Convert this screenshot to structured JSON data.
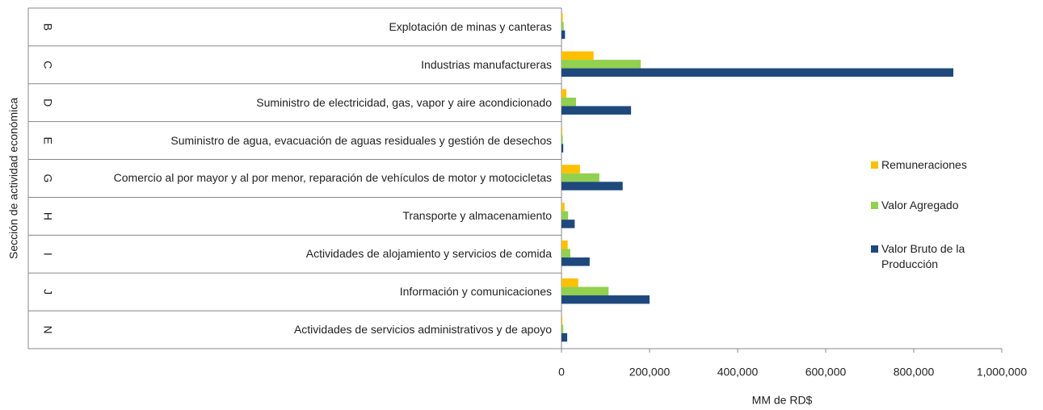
{
  "chart_data": {
    "type": "bar",
    "orientation": "horizontal",
    "axis_title_y": "Sección de actividad económica",
    "axis_title_x": "MM de RD$",
    "sections": [
      "B",
      "C",
      "D",
      "E",
      "G",
      "H",
      "I",
      "J",
      "N"
    ],
    "categories": [
      "Explotación de minas y canteras",
      "Industrias manufactureras",
      "Suministro de electricidad, gas, vapor y aire acondicionado",
      "Suministro de agua, evacuación de aguas residuales y gestión de desechos",
      "Comercio al por mayor y al por menor, reparación de vehículos de motor y motocicletas",
      "Transporte y almacenamiento",
      "Actividades de alojamiento y servicios de comida",
      "Información y comunicaciones",
      "Actividades de servicios administrativos y de apoyo"
    ],
    "series": [
      {
        "name": "Remuneraciones",
        "color": "#FFC000",
        "values": [
          3000,
          73000,
          11000,
          2000,
          42000,
          7000,
          14000,
          38000,
          2000
        ]
      },
      {
        "name": "Valor Agregado",
        "color": "#92D050",
        "values": [
          5000,
          180000,
          33000,
          3000,
          86000,
          15000,
          20000,
          107000,
          4000
        ]
      },
      {
        "name": "Valor Bruto de la Producción",
        "color": "#1F497D",
        "values": [
          8000,
          890000,
          158000,
          4000,
          139000,
          30000,
          64000,
          200000,
          13000
        ]
      }
    ],
    "xlim": [
      0,
      1000000
    ],
    "xticks": [
      0,
      {
        "value": 200000,
        "label": "200,000"
      },
      {
        "value": 400000,
        "label": "400,000"
      },
      {
        "value": 600000,
        "label": "600,000"
      },
      {
        "value": 800000,
        "label": "800,000"
      },
      {
        "value": 1000000,
        "label": "1,000,000"
      }
    ],
    "legend": "right",
    "grid": false
  }
}
